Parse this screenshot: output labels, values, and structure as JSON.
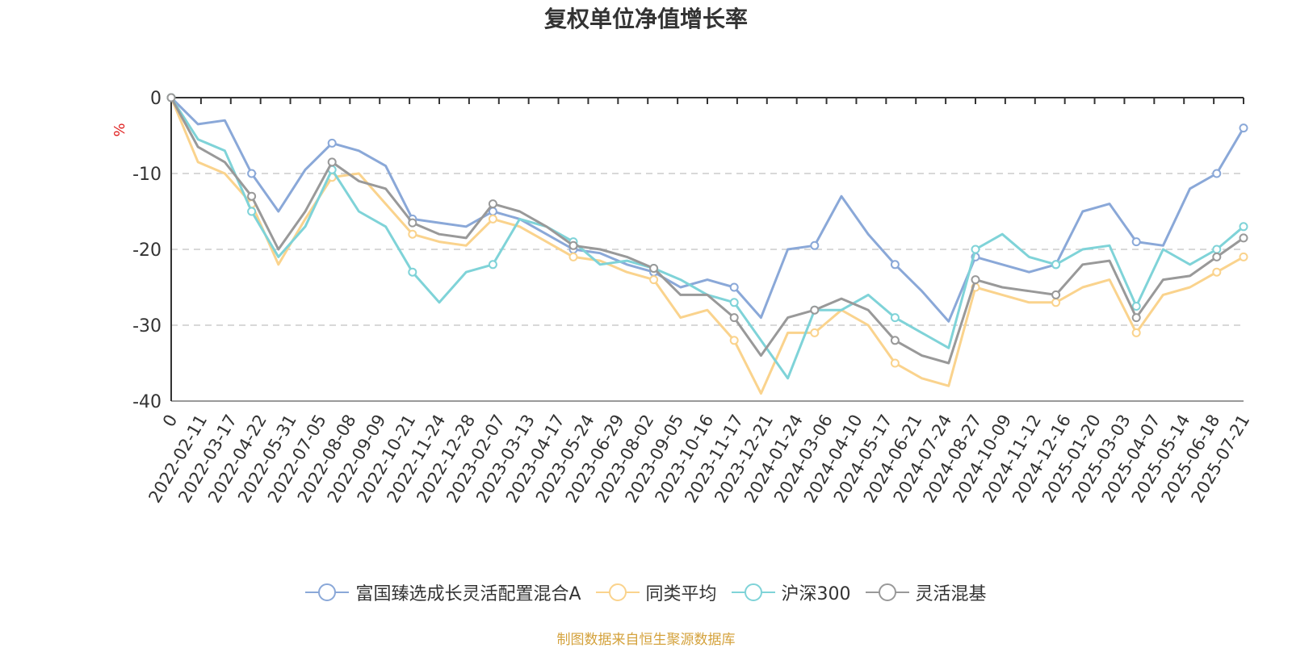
{
  "chart_data": {
    "type": "line",
    "title": "复权单位净值增长率",
    "ylabel": "%",
    "ylim": [
      -40,
      0
    ],
    "yticks": [
      0,
      -10,
      -20,
      -30,
      -40
    ],
    "grid": "dashed horizontal",
    "legend_position": "bottom",
    "x_tick_labels": [
      "0",
      "2022-02-11",
      "2022-03-17",
      "2022-04-22",
      "2022-05-31",
      "2022-07-05",
      "2022-08-08",
      "2022-09-09",
      "2022-10-21",
      "2022-11-24",
      "2022-12-28",
      "2023-02-07",
      "2023-03-13",
      "2023-04-17",
      "2023-05-24",
      "2023-06-29",
      "2023-08-02",
      "2023-09-05",
      "2023-10-16",
      "2023-11-17",
      "2023-12-21",
      "2024-01-24",
      "2024-03-06",
      "2024-04-10",
      "2024-05-17",
      "2024-06-21",
      "2024-07-24",
      "2024-08-27",
      "2024-10-09",
      "2024-11-12",
      "2024-12-16",
      "2025-01-20",
      "2025-03-03",
      "2025-04-07",
      "2025-05-14",
      "2025-06-18",
      "2025-07-21"
    ],
    "series": [
      {
        "name": "富国臻选成长灵活配置混合A",
        "color": "#8aa8d8",
        "values": [
          0,
          -3.5,
          -3,
          -10,
          -15,
          -9.5,
          -6,
          -7,
          -9,
          -16,
          -16.5,
          -17,
          -15,
          -16,
          -18,
          -20,
          -20.5,
          -22,
          -23,
          -25,
          -24,
          -25,
          -29,
          -20,
          -19.5,
          -13,
          -18,
          -22,
          -25.5,
          -29.5,
          -21,
          -22,
          -23,
          -22,
          -15,
          -14,
          -19,
          -19.5,
          -12,
          -10,
          -4
        ]
      },
      {
        "name": "同类平均",
        "color": "#fad38d",
        "values": [
          0,
          -8.5,
          -10,
          -14,
          -22,
          -16,
          -10.5,
          -10,
          -14,
          -18,
          -19,
          -19.5,
          -16,
          -17,
          -19,
          -21,
          -21.5,
          -23,
          -24,
          -29,
          -28,
          -32,
          -39,
          -31,
          -31,
          -28,
          -30,
          -35,
          -37,
          -38,
          -25,
          -26,
          -27,
          -27,
          -25,
          -24,
          -31,
          -26,
          -25,
          -23,
          -21
        ]
      },
      {
        "name": "沪深300",
        "color": "#7fd3d8",
        "values": [
          0,
          -5.5,
          -7,
          -15,
          -21,
          -17,
          -9.5,
          -15,
          -17,
          -23,
          -27,
          -23,
          -22,
          -16,
          -17,
          -19,
          -22,
          -21.5,
          -22.5,
          -24,
          -26,
          -27,
          -32,
          -37,
          -28,
          -28,
          -26,
          -29,
          -31,
          -33,
          -20,
          -18,
          -21,
          -22,
          -20,
          -19.5,
          -27.5,
          -20,
          -22,
          -20,
          -17
        ]
      },
      {
        "name": "灵活混基",
        "color": "#999999",
        "values": [
          0,
          -6.5,
          -8.5,
          -13,
          -20,
          -15,
          -8.5,
          -11,
          -12,
          -16.5,
          -18,
          -18.5,
          -14,
          -15,
          -17,
          -19.5,
          -20,
          -21,
          -22.5,
          -26,
          -26,
          -29,
          -34,
          -29,
          -28,
          -26.5,
          -28,
          -32,
          -34,
          -35,
          -24,
          -25,
          -25.5,
          -26,
          -22,
          -21.5,
          -29,
          -24,
          -23.5,
          -21,
          -18.5
        ]
      }
    ]
  },
  "legend": {
    "items": [
      {
        "label": "富国臻选成长灵活配置混合A",
        "color": "#8aa8d8"
      },
      {
        "label": "同类平均",
        "color": "#fad38d"
      },
      {
        "label": "沪深300",
        "color": "#7fd3d8"
      },
      {
        "label": "灵活混基",
        "color": "#999999"
      }
    ]
  },
  "source_note": "制图数据来自恒生聚源数据库"
}
